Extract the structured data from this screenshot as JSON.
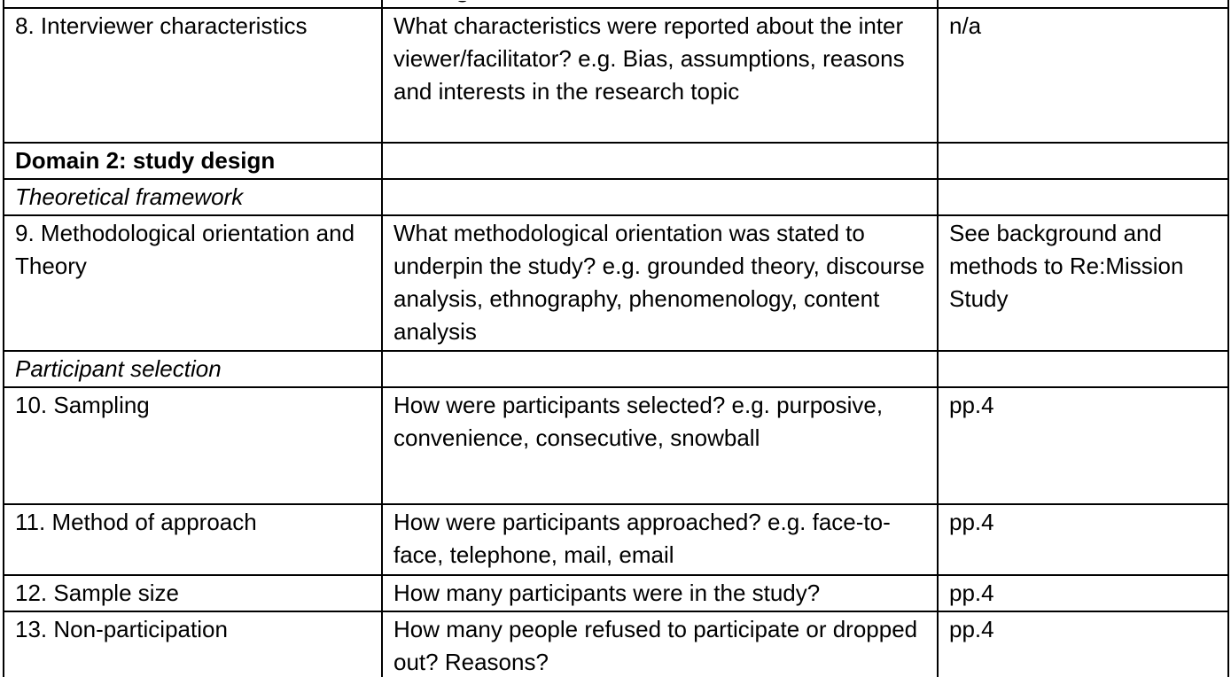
{
  "colors": {
    "border": "#000000",
    "text": "#000000",
    "background": "#ffffff"
  },
  "partial_top_row": {
    "visible_fragment": "g"
  },
  "table": {
    "rows": [
      {
        "row_type": "item",
        "item": "8. Interviewer characteristics",
        "question": "What characteristics were reported about the inter viewer/facilitator? e.g. Bias, assumptions, reasons and interests in the research topic",
        "page": "n/a"
      },
      {
        "row_type": "domain-header",
        "item": "Domain 2: study design",
        "question": "",
        "page": ""
      },
      {
        "row_type": "subsection-header",
        "item": "Theoretical framework",
        "question": "",
        "page": ""
      },
      {
        "row_type": "item",
        "item": "9. Methodological orientation and Theory",
        "question": "What methodological orientation was stated to underpin the study? e.g. grounded theory, discourse analysis, ethnography, phenomenology, content analysis",
        "page": "See background and methods to Re:Mission Study"
      },
      {
        "row_type": "subsection-header",
        "item": "Participant selection",
        "question": "",
        "page": ""
      },
      {
        "row_type": "item",
        "item": "10. Sampling",
        "question": "How were participants selected? e.g. purposive, convenience, consecutive, snowball",
        "page": "pp.4"
      },
      {
        "row_type": "item",
        "item": "11. Method of approach",
        "question": "How were participants approached? e.g. face-to-face, telephone, mail, email",
        "page": "pp.4"
      },
      {
        "row_type": "item",
        "item": "12. Sample size",
        "question": "How many participants were in the study?",
        "page": "pp.4"
      },
      {
        "row_type": "item",
        "item": "13. Non-participation",
        "question": "How many people refused to participate or dropped out? Reasons?",
        "page": "pp.4"
      }
    ]
  }
}
